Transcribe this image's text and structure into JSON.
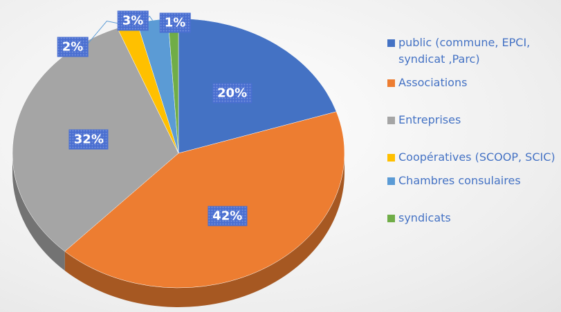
{
  "chart_data": {
    "type": "pie",
    "categories": [
      "public (commune, EPCI, syndicat ,Parc)",
      "Associations",
      "Entreprises",
      "Coopératives (SCOOP, SCIC)",
      "Chambres consulaires",
      "syndicats"
    ],
    "values": [
      20,
      42,
      32,
      2,
      3,
      1
    ],
    "value_labels": [
      "20%",
      "42%",
      "32%",
      "2%",
      "3%",
      "1%"
    ],
    "colors": [
      "#4472c4",
      "#ed7d31",
      "#a5a5a5",
      "#ffc000",
      "#5b9bd5",
      "#70ad47"
    ],
    "legend": "right"
  }
}
